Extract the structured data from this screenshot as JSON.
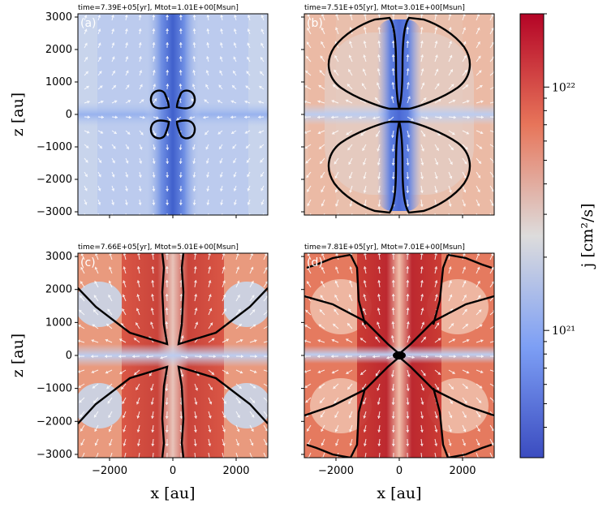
{
  "chart_data": [
    {
      "type": "heatmap",
      "panel_label": "(a)",
      "title": "time=7.39E+05[yr],  Mtot=1.01E+00[Msun]",
      "xlim": [
        -3000,
        3000
      ],
      "ylim": [
        -3100,
        3100
      ],
      "xticks": [],
      "yticks": [
        "3000",
        "2000",
        "1000",
        "0",
        "−1000",
        "−2000",
        "−3000"
      ],
      "ytick_values": [
        3000,
        2000,
        1000,
        0,
        -1000,
        -2000,
        -3000
      ],
      "xlabel": "",
      "ylabel": "z [au]",
      "field_description": "mostly low j (blue-grey) with blue vertical outflow column",
      "contour_levels_shown": "two small lobes around origin"
    },
    {
      "type": "heatmap",
      "panel_label": "(b)",
      "title": "time=7.51E+05[yr],  Mtot=3.01E+00[Msun]",
      "xlim": [
        -3000,
        3000
      ],
      "ylim": [
        -3100,
        3100
      ],
      "xticks": [],
      "yticks": [],
      "xlabel": "",
      "ylabel": ""
    },
    {
      "type": "heatmap",
      "panel_label": "(c)",
      "title": "time=7.66E+05[yr],  Mtot=5.01E+00[Msun]",
      "xlim": [
        -3000,
        3000
      ],
      "ylim": [
        -3100,
        3100
      ],
      "xticks": [
        "−2000",
        "0",
        "2000"
      ],
      "xtick_values": [
        -2000,
        0,
        2000
      ],
      "yticks": [
        "3000",
        "2000",
        "1000",
        "0",
        "−1000",
        "−2000",
        "−3000"
      ],
      "ytick_values": [
        3000,
        2000,
        1000,
        0,
        -1000,
        -2000,
        -3000
      ],
      "xlabel": "x [au]",
      "ylabel": "z [au]"
    },
    {
      "type": "heatmap",
      "panel_label": "(d)",
      "title": "time=7.81E+05[yr],  Mtot=7.01E+00[Msun]",
      "xlim": [
        -3000,
        3000
      ],
      "ylim": [
        -3100,
        3100
      ],
      "xticks": [
        "−2000",
        "0",
        "2000"
      ],
      "xtick_values": [
        -2000,
        0,
        2000
      ],
      "yticks": [],
      "xlabel": "x [au]",
      "ylabel": ""
    }
  ],
  "colorbar": {
    "label": "j [cm²/s]",
    "scale": "log",
    "range": [
      3e+20,
      2e+22
    ],
    "major_ticks": [
      {
        "label": "10²²",
        "value": 1e+22
      },
      {
        "label": "10²¹",
        "value": 1e+21
      }
    ],
    "minor_tick_values": [
      4e+20,
      5e+20,
      6e+20,
      7e+20,
      8e+20,
      9e+20,
      2e+21,
      3e+21,
      4e+21,
      5e+21,
      6e+21,
      7e+21,
      8e+21,
      9e+21,
      2e+22
    ],
    "colormap": "coolwarm",
    "colors": {
      "low": "#3b4cc0",
      "mid": "#dddddd",
      "high": "#b40426"
    }
  }
}
